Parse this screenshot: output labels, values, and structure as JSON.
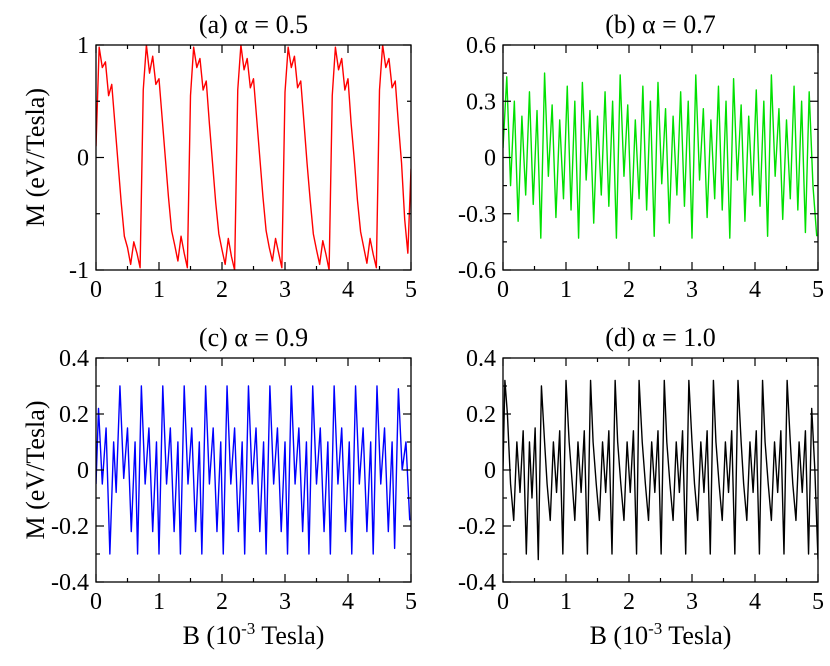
{
  "chart_data": [
    {
      "type": "line",
      "title": "(a) α = 0.5",
      "xlabel": "",
      "ylabel": "M (eV/Tesla)",
      "xlim": [
        0,
        5
      ],
      "ylim": [
        -1,
        1
      ],
      "xticks": [
        0,
        1,
        2,
        3,
        4,
        5
      ],
      "yticks": [
        -1,
        0,
        1
      ],
      "xtick_labels": [
        "0",
        "1",
        "2",
        "3",
        "4",
        "5"
      ],
      "ytick_labels": [
        "-1",
        "0",
        "1"
      ],
      "series": [
        {
          "name": "α = 0.5",
          "color": "#ff0000",
          "x": [
            0.0,
            0.05,
            0.1,
            0.15,
            0.2,
            0.25,
            0.3,
            0.35,
            0.4,
            0.45,
            0.5,
            0.55,
            0.6,
            0.65,
            0.7,
            0.75,
            0.8,
            0.85,
            0.9,
            0.95,
            1.0,
            1.05,
            1.1,
            1.15,
            1.2,
            1.25,
            1.3,
            1.35,
            1.4,
            1.45,
            1.5,
            1.55,
            1.6,
            1.65,
            1.7,
            1.75,
            1.8,
            1.85,
            1.9,
            1.95,
            2.0,
            2.05,
            2.1,
            2.15,
            2.2,
            2.25,
            2.3,
            2.35,
            2.4,
            2.45,
            2.5,
            2.55,
            2.6,
            2.65,
            2.7,
            2.75,
            2.8,
            2.85,
            2.9,
            2.95,
            3.0,
            3.05,
            3.1,
            3.15,
            3.2,
            3.25,
            3.3,
            3.35,
            3.4,
            3.45,
            3.5,
            3.55,
            3.6,
            3.65,
            3.7,
            3.75,
            3.8,
            3.85,
            3.9,
            3.95,
            4.0,
            4.05,
            4.1,
            4.15,
            4.2,
            4.25,
            4.3,
            4.35,
            4.4,
            4.45,
            4.5,
            4.55,
            4.6,
            4.65,
            4.7,
            4.75,
            4.8,
            4.85,
            4.9,
            4.95,
            5.0
          ],
          "y": [
            0.1,
            0.98,
            0.8,
            0.85,
            0.55,
            0.65,
            0.3,
            -0.05,
            -0.4,
            -0.7,
            -0.8,
            -0.95,
            -0.75,
            -0.85,
            -0.98,
            0.6,
            1.0,
            0.75,
            0.9,
            0.65,
            0.7,
            0.35,
            0.0,
            -0.35,
            -0.65,
            -0.78,
            -0.92,
            -0.7,
            -0.85,
            -0.98,
            0.55,
            0.98,
            0.8,
            0.88,
            0.6,
            0.68,
            0.3,
            -0.05,
            -0.4,
            -0.68,
            -0.82,
            -0.95,
            -0.72,
            -0.88,
            -1.0,
            0.6,
            1.0,
            0.78,
            0.88,
            0.62,
            0.7,
            0.35,
            0.0,
            -0.35,
            -0.65,
            -0.8,
            -0.92,
            -0.72,
            -0.85,
            -0.98,
            0.58,
            0.98,
            0.8,
            0.9,
            0.62,
            0.68,
            0.32,
            -0.05,
            -0.38,
            -0.68,
            -0.82,
            -0.95,
            -0.74,
            -0.86,
            -1.0,
            0.55,
            0.98,
            0.78,
            0.88,
            0.6,
            0.7,
            0.3,
            -0.02,
            -0.38,
            -0.66,
            -0.8,
            -0.94,
            -0.72,
            -0.86,
            -0.98,
            0.6,
            1.0,
            0.8,
            0.88,
            0.62,
            0.68,
            0.3,
            -0.05,
            -0.55,
            -0.85,
            -0.1
          ]
        }
      ]
    },
    {
      "type": "line",
      "title": "(b) α = 0.7",
      "xlabel": "",
      "ylabel": "",
      "xlim": [
        0,
        5
      ],
      "ylim": [
        -0.6,
        0.6
      ],
      "xticks": [
        0,
        1,
        2,
        3,
        4,
        5
      ],
      "yticks": [
        -0.6,
        -0.3,
        0,
        0.3,
        0.6
      ],
      "xtick_labels": [
        "0",
        "1",
        "2",
        "3",
        "4",
        "5"
      ],
      "ytick_labels": [
        "-0.6",
        "-0.3",
        "0",
        "0.3",
        "0.6"
      ],
      "series": [
        {
          "name": "α = 0.7",
          "color": "#00e000",
          "x": [
            0.0,
            0.06,
            0.12,
            0.18,
            0.24,
            0.3,
            0.36,
            0.42,
            0.48,
            0.54,
            0.6,
            0.66,
            0.72,
            0.78,
            0.84,
            0.9,
            0.96,
            1.02,
            1.08,
            1.14,
            1.2,
            1.26,
            1.32,
            1.38,
            1.44,
            1.5,
            1.56,
            1.62,
            1.68,
            1.74,
            1.8,
            1.86,
            1.92,
            1.98,
            2.04,
            2.1,
            2.16,
            2.22,
            2.28,
            2.34,
            2.4,
            2.46,
            2.52,
            2.58,
            2.64,
            2.7,
            2.76,
            2.82,
            2.88,
            2.94,
            3.0,
            3.06,
            3.12,
            3.18,
            3.24,
            3.3,
            3.36,
            3.42,
            3.48,
            3.54,
            3.6,
            3.66,
            3.72,
            3.78,
            3.84,
            3.9,
            3.96,
            4.02,
            4.08,
            4.14,
            4.2,
            4.26,
            4.32,
            4.38,
            4.44,
            4.5,
            4.56,
            4.62,
            4.68,
            4.74,
            4.8,
            4.86,
            4.92,
            4.98
          ],
          "y": [
            0.05,
            0.43,
            -0.15,
            0.3,
            -0.34,
            0.22,
            -0.2,
            0.35,
            -0.25,
            0.25,
            -0.43,
            0.45,
            -0.1,
            0.28,
            -0.32,
            0.2,
            -0.22,
            0.38,
            -0.28,
            0.3,
            -0.43,
            0.4,
            -0.12,
            0.25,
            -0.35,
            0.22,
            -0.2,
            0.35,
            -0.26,
            0.3,
            -0.43,
            0.44,
            -0.1,
            0.28,
            -0.33,
            0.2,
            -0.22,
            0.38,
            -0.28,
            0.3,
            -0.42,
            0.4,
            -0.14,
            0.26,
            -0.35,
            0.22,
            -0.2,
            0.35,
            -0.26,
            0.3,
            -0.43,
            0.44,
            -0.12,
            0.26,
            -0.32,
            0.2,
            -0.22,
            0.38,
            -0.28,
            0.3,
            -0.43,
            0.42,
            -0.12,
            0.28,
            -0.34,
            0.22,
            -0.2,
            0.36,
            -0.26,
            0.3,
            -0.42,
            0.44,
            -0.1,
            0.26,
            -0.33,
            0.2,
            -0.22,
            0.38,
            -0.28,
            0.3,
            -0.4,
            0.35,
            -0.15,
            -0.42
          ]
        }
      ]
    },
    {
      "type": "line",
      "title": "(c) α = 0.9",
      "xlabel": "B (10^-3 Tesla)",
      "ylabel": "M (eV/Tesla)",
      "xlim": [
        0,
        5
      ],
      "ylim": [
        -0.4,
        0.4
      ],
      "xticks": [
        0,
        1,
        2,
        3,
        4,
        5
      ],
      "yticks": [
        -0.4,
        -0.2,
        0,
        0.2,
        0.4
      ],
      "xtick_labels": [
        "0",
        "1",
        "2",
        "3",
        "4",
        "5"
      ],
      "ytick_labels": [
        "-0.4",
        "-0.2",
        "0",
        "0.2",
        "0.4"
      ],
      "series": [
        {
          "name": "α = 0.9",
          "color": "#0000ff",
          "x": [
            0.0,
            0.04,
            0.1,
            0.16,
            0.22,
            0.28,
            0.32,
            0.38,
            0.44,
            0.5,
            0.56,
            0.62,
            0.66,
            0.72,
            0.78,
            0.84,
            0.9,
            0.96,
            1.0,
            1.06,
            1.12,
            1.18,
            1.24,
            1.3,
            1.34,
            1.4,
            1.46,
            1.52,
            1.58,
            1.64,
            1.68,
            1.74,
            1.8,
            1.86,
            1.92,
            1.98,
            2.02,
            2.08,
            2.14,
            2.2,
            2.26,
            2.32,
            2.36,
            2.42,
            2.48,
            2.54,
            2.6,
            2.66,
            2.7,
            2.76,
            2.82,
            2.88,
            2.94,
            3.0,
            3.04,
            3.1,
            3.16,
            3.22,
            3.28,
            3.34,
            3.38,
            3.44,
            3.5,
            3.56,
            3.62,
            3.68,
            3.72,
            3.78,
            3.84,
            3.9,
            3.96,
            4.02,
            4.06,
            4.12,
            4.18,
            4.24,
            4.3,
            4.36,
            4.4,
            4.46,
            4.52,
            4.58,
            4.64,
            4.7,
            4.74,
            4.8,
            4.86,
            4.92,
            4.98
          ],
          "y": [
            -0.05,
            0.22,
            -0.05,
            0.15,
            -0.3,
            0.1,
            -0.08,
            0.3,
            -0.03,
            0.15,
            -0.22,
            0.1,
            -0.3,
            0.3,
            -0.05,
            0.15,
            -0.22,
            0.1,
            -0.3,
            0.3,
            -0.05,
            0.15,
            -0.22,
            0.1,
            -0.3,
            0.3,
            -0.05,
            0.15,
            -0.22,
            0.1,
            -0.3,
            0.3,
            -0.05,
            0.15,
            -0.22,
            0.1,
            -0.3,
            0.3,
            -0.05,
            0.15,
            -0.22,
            0.1,
            -0.3,
            0.3,
            -0.05,
            0.15,
            -0.22,
            0.1,
            -0.3,
            0.3,
            -0.05,
            0.15,
            -0.22,
            0.1,
            -0.3,
            0.3,
            -0.05,
            0.15,
            -0.22,
            0.1,
            -0.3,
            0.3,
            -0.05,
            0.15,
            -0.22,
            0.1,
            -0.3,
            0.3,
            -0.05,
            0.15,
            -0.22,
            0.1,
            -0.3,
            0.3,
            -0.05,
            0.15,
            -0.22,
            0.1,
            -0.3,
            0.3,
            -0.05,
            0.15,
            -0.22,
            0.1,
            -0.28,
            0.29,
            0.0,
            0.1,
            -0.18
          ]
        }
      ]
    },
    {
      "type": "line",
      "title": "(d) α = 1.0",
      "xlabel": "B (10^-3 Tesla)",
      "ylabel": "",
      "xlim": [
        0,
        5
      ],
      "ylim": [
        -0.4,
        0.4
      ],
      "xticks": [
        0,
        1,
        2,
        3,
        4,
        5
      ],
      "yticks": [
        -0.4,
        -0.2,
        0,
        0.2,
        0.4
      ],
      "xtick_labels": [
        "0",
        "1",
        "2",
        "3",
        "4",
        "5"
      ],
      "ytick_labels": [
        "-0.4",
        "-0.2",
        "0",
        "0.2",
        "0.4"
      ],
      "series": [
        {
          "name": "α = 1.0",
          "color": "#000000",
          "x": [
            0.0,
            0.03,
            0.07,
            0.12,
            0.17,
            0.22,
            0.27,
            0.32,
            0.37,
            0.42,
            0.46,
            0.51,
            0.56,
            0.61,
            0.66,
            0.7,
            0.75,
            0.8,
            0.85,
            0.9,
            0.95,
            1.0,
            1.05,
            1.1,
            1.14,
            1.19,
            1.24,
            1.29,
            1.34,
            1.39,
            1.43,
            1.48,
            1.53,
            1.58,
            1.63,
            1.68,
            1.73,
            1.78,
            1.82,
            1.87,
            1.92,
            1.97,
            2.02,
            2.07,
            2.12,
            2.16,
            2.21,
            2.26,
            2.31,
            2.36,
            2.41,
            2.46,
            2.51,
            2.56,
            2.6,
            2.65,
            2.7,
            2.75,
            2.8,
            2.85,
            2.9,
            2.95,
            3.0,
            3.04,
            3.09,
            3.14,
            3.19,
            3.24,
            3.29,
            3.34,
            3.38,
            3.43,
            3.48,
            3.53,
            3.58,
            3.63,
            3.68,
            3.73,
            3.78,
            3.82,
            3.87,
            3.92,
            3.97,
            4.02,
            4.07,
            4.12,
            4.16,
            4.21,
            4.26,
            4.31,
            4.36,
            4.41,
            4.46,
            4.51,
            4.56,
            4.6,
            4.65,
            4.7,
            4.75,
            4.8,
            4.85,
            4.9,
            4.95,
            5.0
          ],
          "y": [
            0.0,
            0.32,
            0.2,
            -0.05,
            -0.18,
            0.1,
            -0.08,
            0.14,
            -0.3,
            0.1,
            -0.1,
            0.15,
            -0.32,
            0.3,
            0.1,
            -0.05,
            -0.18,
            0.1,
            -0.08,
            0.14,
            -0.3,
            0.32,
            0.1,
            -0.05,
            -0.18,
            0.1,
            -0.08,
            0.14,
            -0.3,
            0.32,
            0.1,
            -0.05,
            -0.18,
            0.1,
            -0.08,
            0.14,
            -0.3,
            0.32,
            0.1,
            -0.05,
            -0.18,
            0.1,
            -0.08,
            0.14,
            -0.3,
            0.32,
            0.1,
            -0.05,
            -0.18,
            0.1,
            -0.08,
            0.14,
            -0.3,
            0.32,
            0.1,
            -0.05,
            -0.18,
            0.1,
            -0.08,
            0.14,
            -0.3,
            0.32,
            0.1,
            -0.05,
            -0.18,
            0.1,
            -0.08,
            0.14,
            -0.3,
            0.32,
            0.1,
            -0.05,
            -0.18,
            0.1,
            -0.08,
            0.14,
            -0.3,
            0.32,
            0.1,
            -0.05,
            -0.18,
            0.1,
            -0.08,
            0.14,
            -0.3,
            0.32,
            0.1,
            -0.05,
            -0.18,
            0.1,
            -0.08,
            0.14,
            -0.3,
            0.32,
            0.1,
            -0.05,
            -0.18,
            0.1,
            -0.08,
            0.14,
            -0.3,
            0.22,
            0.0,
            -0.32
          ]
        }
      ]
    }
  ]
}
